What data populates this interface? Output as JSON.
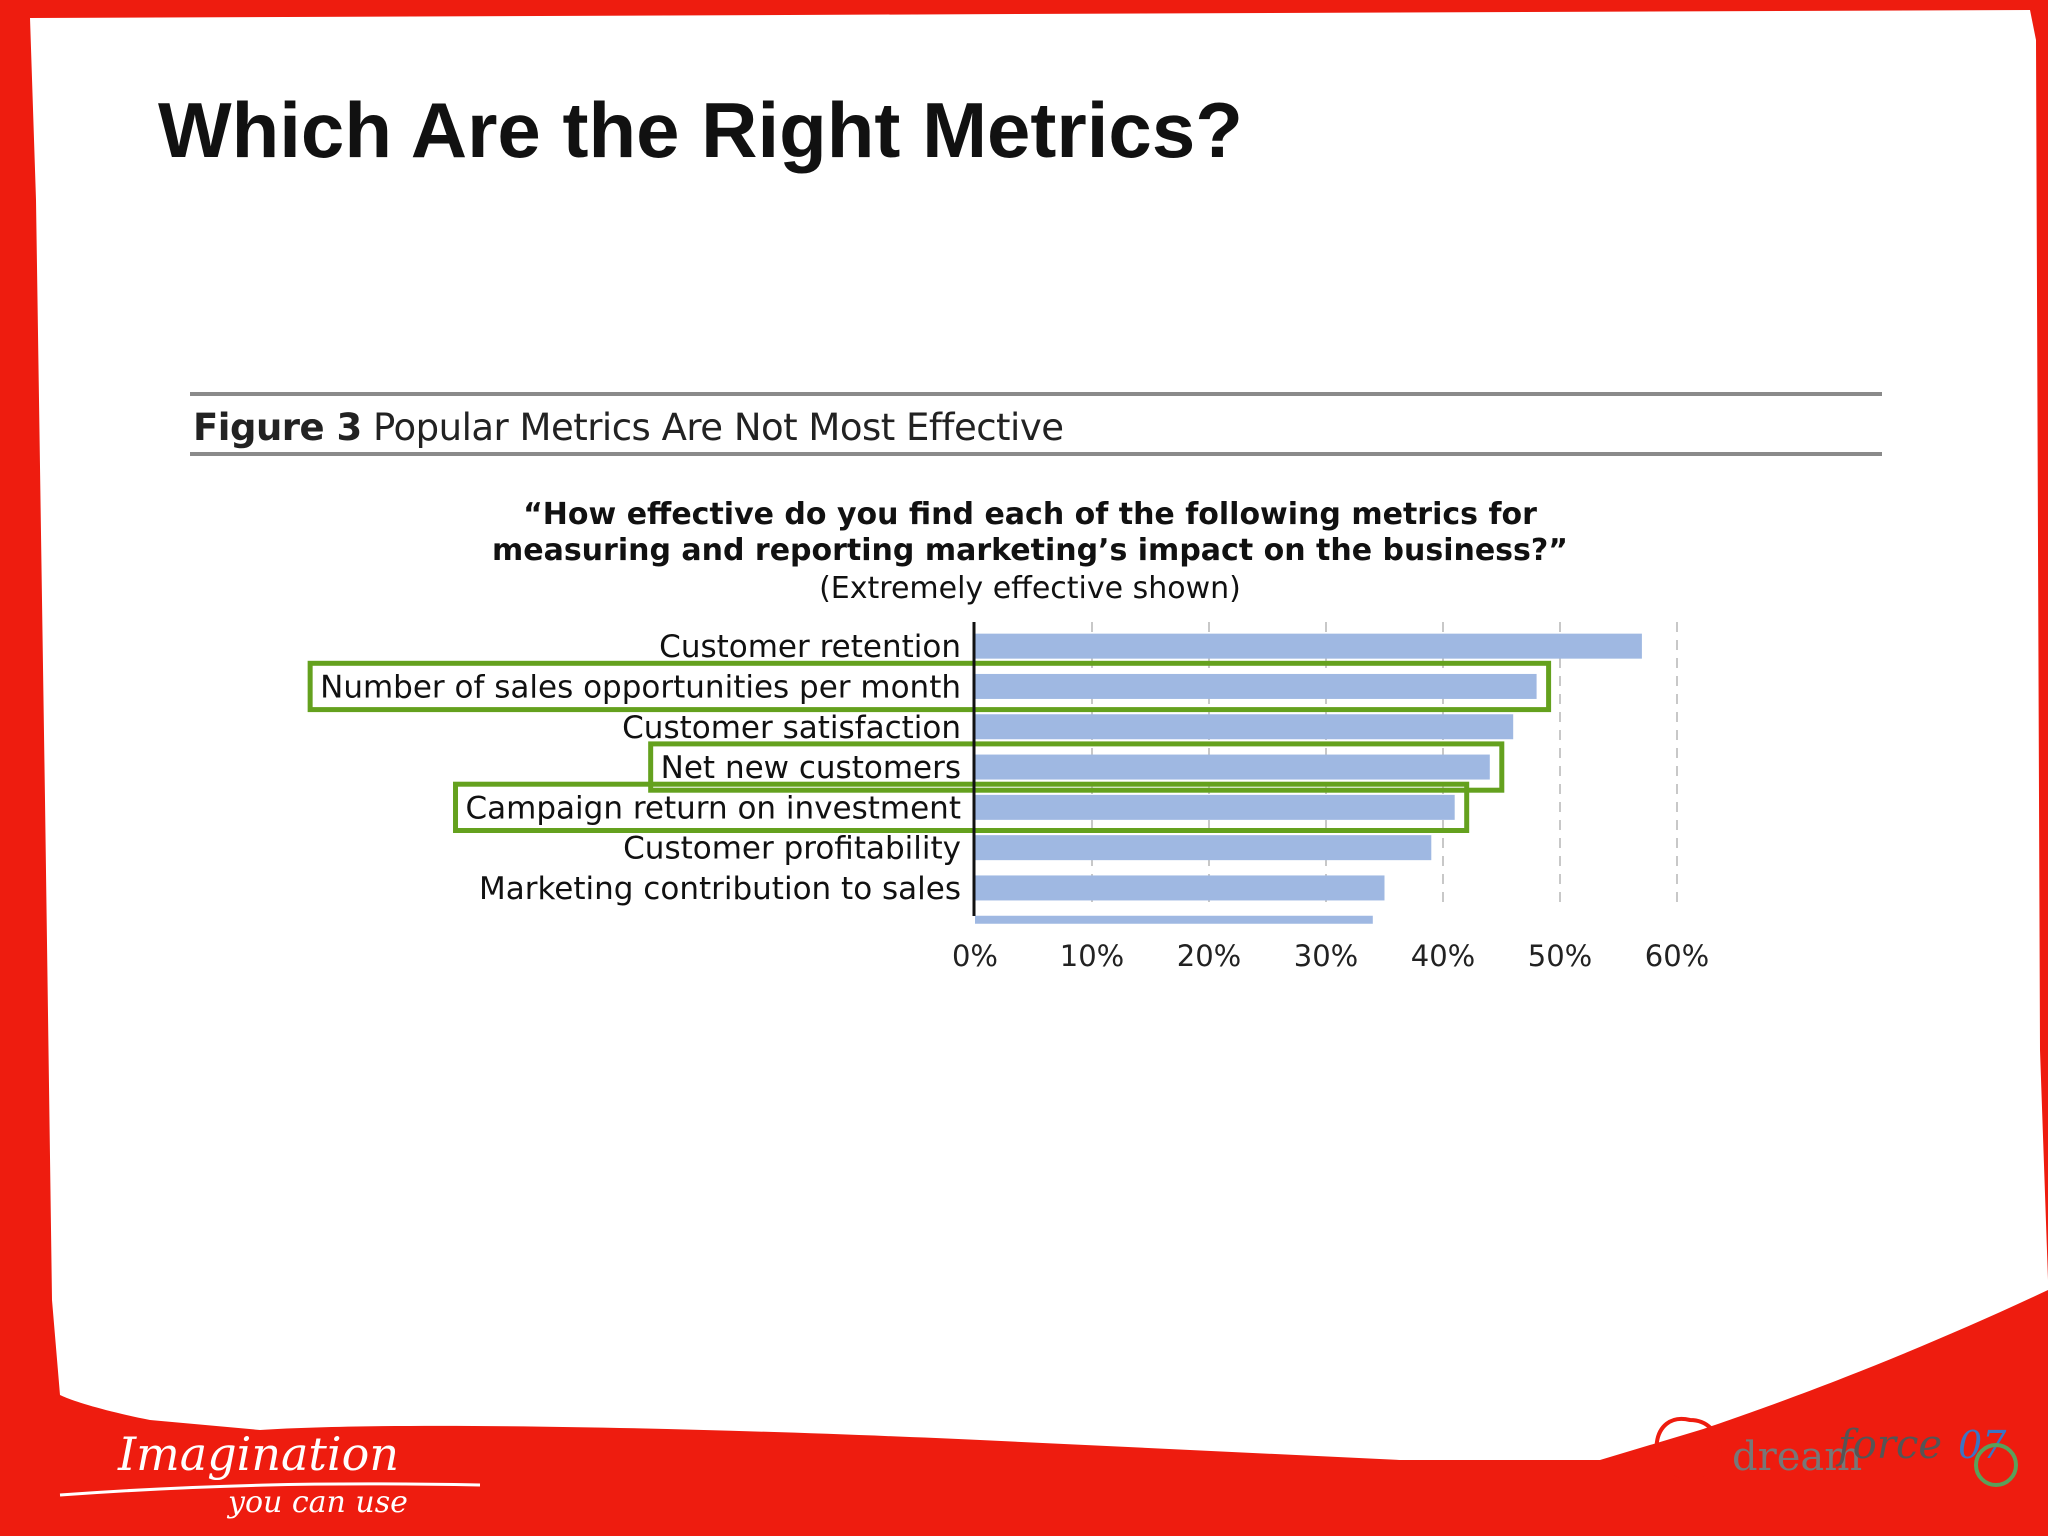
{
  "slide": {
    "title": "Which Are the Right Metrics?"
  },
  "figure": {
    "label": "Figure 3",
    "caption": "Popular Metrics Are Not Most Effective",
    "question_line1": "“How effective do you find each of the following metrics for",
    "question_line2": "measuring and reporting marketing’s impact on the business?”",
    "note": "(Extremely effective shown)"
  },
  "chart_data": {
    "type": "bar",
    "orientation": "horizontal",
    "categories": [
      "Customer retention",
      "Number of sales opportunities per month",
      "Customer satisfaction",
      "Net new customers",
      "Campaign return on investment",
      "Customer profitability",
      "Marketing contribution to sales"
    ],
    "values": [
      57,
      48,
      46,
      44,
      41,
      39,
      35
    ],
    "partial_bar_value": 34,
    "highlighted": [
      "Number of sales opportunities per month",
      "Net new customers",
      "Campaign return on investment"
    ],
    "xlim": [
      0,
      60
    ],
    "xticks": [
      "0%",
      "10%",
      "20%",
      "30%",
      "40%",
      "50%",
      "60%"
    ],
    "grid": "vertical dashed",
    "bar_color": "#9fb8e2",
    "highlight_color": "#64a11e"
  },
  "footer": {
    "tagline_line1": "Imagination",
    "tagline_line2": "you can use",
    "logo_text_1": "dream",
    "logo_text_2": "force",
    "logo_text_3": "07"
  },
  "colors": {
    "frame_red": "#ee1c0f",
    "panel_white": "#ffffff"
  }
}
